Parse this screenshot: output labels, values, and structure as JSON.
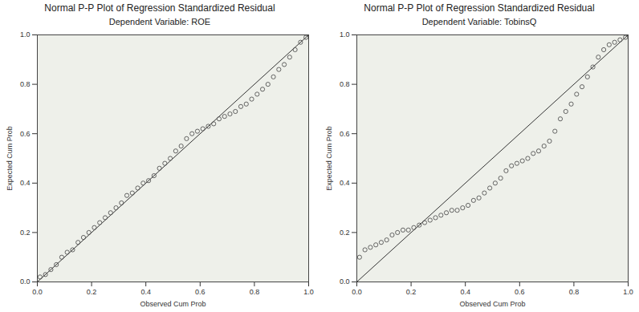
{
  "chart_data": [
    {
      "type": "scatter",
      "title": "Normal P-P Plot of Regression Standardized Residual",
      "subtitle": "Dependent Variable: ROE",
      "x_label": "Observed Cum Prob",
      "y_label": "Expected Cum Prob",
      "xlim": [
        0,
        1
      ],
      "ylim": [
        0,
        1
      ],
      "xticks": [
        {
          "value": 0,
          "label": "0.0"
        },
        {
          "value": 0.2,
          "label": "0.2"
        },
        {
          "value": 0.4,
          "label": "0.4"
        },
        {
          "value": 0.6,
          "label": "0.6"
        },
        {
          "value": 0.8,
          "label": "0.8"
        },
        {
          "value": 1,
          "label": "1.0"
        }
      ],
      "yticks": [
        {
          "value": 0,
          "label": "0.0"
        },
        {
          "value": 0.2,
          "label": "0.2"
        },
        {
          "value": 0.4,
          "label": "0.4"
        },
        {
          "value": 0.6,
          "label": "0.6"
        },
        {
          "value": 0.8,
          "label": "0.8"
        },
        {
          "value": 1,
          "label": "1.0"
        }
      ],
      "grid": false,
      "series": [
        {
          "type": "line",
          "color": "#333333",
          "x": [
            0,
            1
          ],
          "values": [
            0,
            1
          ]
        },
        {
          "type": "scatter",
          "marker": "circle",
          "color": "#555555",
          "x": [
            0.01,
            0.03,
            0.05,
            0.07,
            0.09,
            0.11,
            0.13,
            0.15,
            0.17,
            0.19,
            0.21,
            0.23,
            0.25,
            0.27,
            0.29,
            0.31,
            0.33,
            0.35,
            0.37,
            0.39,
            0.41,
            0.43,
            0.45,
            0.47,
            0.49,
            0.51,
            0.53,
            0.55,
            0.57,
            0.59,
            0.61,
            0.63,
            0.65,
            0.67,
            0.69,
            0.71,
            0.73,
            0.75,
            0.77,
            0.79,
            0.81,
            0.83,
            0.85,
            0.87,
            0.89,
            0.91,
            0.93,
            0.95,
            0.97,
            0.99
          ],
          "values": [
            0.02,
            0.03,
            0.05,
            0.07,
            0.1,
            0.12,
            0.13,
            0.16,
            0.18,
            0.2,
            0.22,
            0.24,
            0.26,
            0.28,
            0.3,
            0.32,
            0.35,
            0.36,
            0.38,
            0.4,
            0.41,
            0.43,
            0.46,
            0.48,
            0.5,
            0.53,
            0.55,
            0.58,
            0.6,
            0.61,
            0.62,
            0.63,
            0.64,
            0.66,
            0.67,
            0.68,
            0.69,
            0.71,
            0.72,
            0.74,
            0.76,
            0.78,
            0.8,
            0.83,
            0.86,
            0.88,
            0.91,
            0.94,
            0.97,
            0.99
          ]
        }
      ]
    },
    {
      "type": "scatter",
      "title": "Normal P-P Plot of Regression Standardized Residual",
      "subtitle": "Dependent Variable: TobinsQ",
      "x_label": "Observed Cum Prob",
      "y_label": "Expected Cum Prob",
      "xlim": [
        0,
        1
      ],
      "ylim": [
        0,
        1
      ],
      "xticks": [
        {
          "value": 0,
          "label": "0.0"
        },
        {
          "value": 0.2,
          "label": "0.2"
        },
        {
          "value": 0.4,
          "label": "0.4"
        },
        {
          "value": 0.6,
          "label": "0.6"
        },
        {
          "value": 0.8,
          "label": "0.8"
        },
        {
          "value": 1,
          "label": "1.0"
        }
      ],
      "yticks": [
        {
          "value": 0,
          "label": "0.0"
        },
        {
          "value": 0.2,
          "label": "0.2"
        },
        {
          "value": 0.4,
          "label": "0.4"
        },
        {
          "value": 0.6,
          "label": "0.6"
        },
        {
          "value": 0.8,
          "label": "0.8"
        },
        {
          "value": 1,
          "label": "1.0"
        }
      ],
      "grid": false,
      "series": [
        {
          "type": "line",
          "color": "#333333",
          "x": [
            0,
            1
          ],
          "values": [
            0,
            1
          ]
        },
        {
          "type": "scatter",
          "marker": "circle",
          "color": "#555555",
          "x": [
            0.01,
            0.03,
            0.05,
            0.07,
            0.09,
            0.11,
            0.13,
            0.15,
            0.17,
            0.19,
            0.21,
            0.23,
            0.25,
            0.27,
            0.29,
            0.31,
            0.33,
            0.35,
            0.37,
            0.39,
            0.41,
            0.43,
            0.45,
            0.47,
            0.49,
            0.51,
            0.53,
            0.55,
            0.57,
            0.59,
            0.61,
            0.63,
            0.65,
            0.67,
            0.69,
            0.71,
            0.73,
            0.75,
            0.77,
            0.79,
            0.81,
            0.83,
            0.85,
            0.87,
            0.89,
            0.91,
            0.93,
            0.95,
            0.97,
            0.99
          ],
          "values": [
            0.1,
            0.13,
            0.14,
            0.15,
            0.16,
            0.17,
            0.19,
            0.2,
            0.21,
            0.21,
            0.22,
            0.23,
            0.24,
            0.25,
            0.26,
            0.27,
            0.28,
            0.29,
            0.29,
            0.3,
            0.31,
            0.33,
            0.34,
            0.36,
            0.38,
            0.4,
            0.42,
            0.45,
            0.47,
            0.48,
            0.49,
            0.5,
            0.52,
            0.53,
            0.55,
            0.57,
            0.61,
            0.66,
            0.69,
            0.72,
            0.76,
            0.79,
            0.83,
            0.87,
            0.91,
            0.94,
            0.96,
            0.97,
            0.98,
            0.99
          ]
        }
      ]
    }
  ]
}
